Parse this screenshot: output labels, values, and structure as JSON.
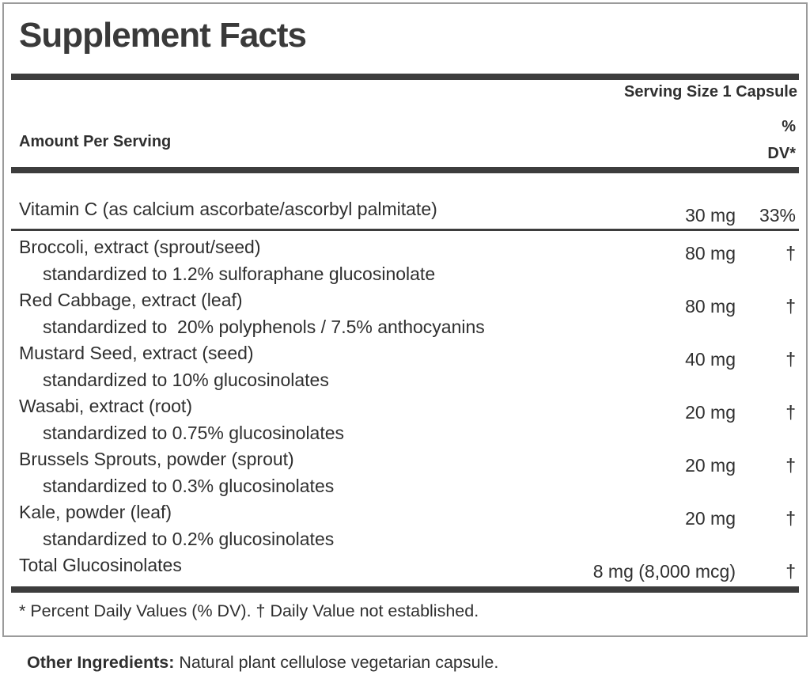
{
  "label": {
    "title": "Supplement Facts",
    "serving_size": "Serving Size 1 Capsule",
    "header": {
      "amount": "Amount Per Serving",
      "dv_line1": "%",
      "dv_line2": "DV*"
    },
    "rows": [
      {
        "name": "Vitamin C (as calcium ascorbate/ascorbyl palmitate)",
        "amount": "30 mg",
        "dv": "33%",
        "sub": null,
        "divider_after": true
      },
      {
        "name": "Broccoli, extract (sprout/seed)",
        "amount": "80 mg",
        "dv": "†",
        "sub": "standardized to 1.2% sulforaphane glucosinolate",
        "divider_after": false
      },
      {
        "name": "Red Cabbage, extract (leaf)",
        "amount": "80 mg",
        "dv": "†",
        "sub": "standardized to  20% polyphenols / 7.5% anthocyanins",
        "divider_after": false
      },
      {
        "name": "Mustard Seed, extract (seed)",
        "amount": "40 mg",
        "dv": "†",
        "sub": "standardized to 10% glucosinolates",
        "divider_after": false
      },
      {
        "name": "Wasabi, extract (root)",
        "amount": "20 mg",
        "dv": "†",
        "sub": "standardized to 0.75% glucosinolates",
        "divider_after": false
      },
      {
        "name": "Brussels Sprouts, powder (sprout)",
        "amount": "20 mg",
        "dv": "†",
        "sub": "standardized to 0.3% glucosinolates",
        "divider_after": false
      },
      {
        "name": "Kale, powder (leaf)",
        "amount": "20 mg",
        "dv": "†",
        "sub": "standardized to 0.2% glucosinolates",
        "divider_after": false
      },
      {
        "name": "Total Glucosinolates",
        "amount": "8 mg (8,000 mcg)",
        "dv": "†",
        "sub": null,
        "divider_after": false
      }
    ],
    "footnote": "* Percent Daily Values (% DV). † Daily Value not established.",
    "other_ingredients_label": "Other Ingredients:",
    "other_ingredients_text": " Natural plant cellulose vegetarian capsule."
  },
  "colors": {
    "text": "#2f2f2f",
    "bar": "#3d3d3d",
    "border": "#9b9b9b",
    "background": "#ffffff"
  }
}
